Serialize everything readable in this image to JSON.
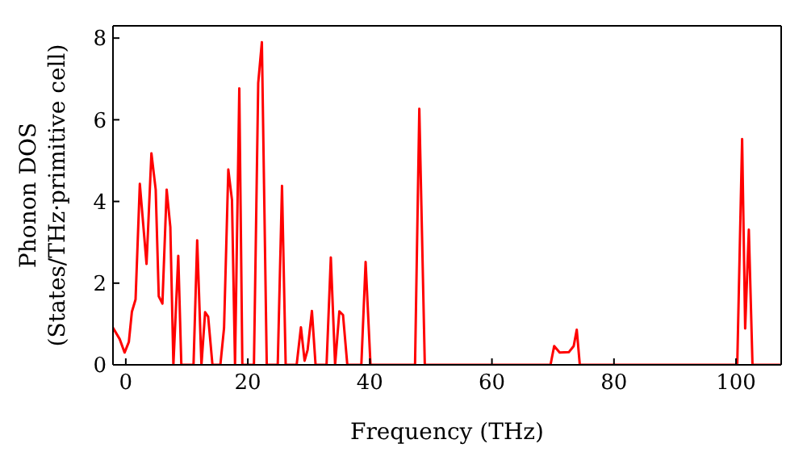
{
  "chart_data": {
    "type": "line",
    "xlabel": "Frequency (THz)",
    "ylabel": "Phonon DOS\n(States/THz·primitive cell)",
    "xlim": [
      -2.1,
      107.4
    ],
    "ylim": [
      0,
      8.3
    ],
    "xticks": [
      0,
      20,
      40,
      60,
      80,
      100
    ],
    "yticks": [
      0,
      2,
      4,
      6,
      8
    ],
    "marker": "none",
    "line_style": "solid",
    "series": [
      {
        "color": "#ff0000",
        "x": [
          -2.1,
          -1,
          -0.2,
          0.5,
          1,
          1.6,
          2.3,
          3.4,
          4.2,
          4.9,
          5.4,
          6,
          6.7,
          7.3,
          7.8,
          8.6,
          9.1,
          11.1,
          11.7,
          12.4,
          13,
          13.5,
          14.2,
          15.5,
          16.1,
          16.8,
          17.4,
          17.9,
          18.6,
          19.1,
          19.4,
          21,
          21.7,
          22.3,
          23.1,
          24.9,
          25.6,
          26.2,
          28,
          28.7,
          29.3,
          29.8,
          30.5,
          31.1,
          32.9,
          33.6,
          34.3,
          35,
          35.6,
          36.3,
          38.6,
          39.3,
          40.1,
          47.4,
          48.1,
          49,
          69.6,
          70.2,
          71.1,
          72.6,
          73.4,
          73.9,
          74.4,
          100.2,
          101,
          101.5,
          102.1,
          102.7,
          107.4
        ],
        "values": [
          0.91,
          0.63,
          0.3,
          0.56,
          1.3,
          1.6,
          4.43,
          2.47,
          5.18,
          4.29,
          1.68,
          1.5,
          4.29,
          3.37,
          0,
          2.67,
          0,
          0,
          3.05,
          0,
          1.29,
          1.18,
          0,
          0,
          0.9,
          4.78,
          4.04,
          0,
          6.77,
          0,
          0,
          0,
          6.9,
          7.9,
          0,
          0,
          4.38,
          0,
          0,
          0.92,
          0.1,
          0.37,
          1.32,
          0,
          0,
          2.63,
          0,
          1.31,
          1.22,
          0,
          0,
          2.52,
          0,
          0,
          6.27,
          0,
          0,
          0.46,
          0.3,
          0.31,
          0.46,
          0.86,
          0,
          0,
          5.53,
          0.89,
          3.31,
          0,
          0
        ]
      }
    ]
  }
}
